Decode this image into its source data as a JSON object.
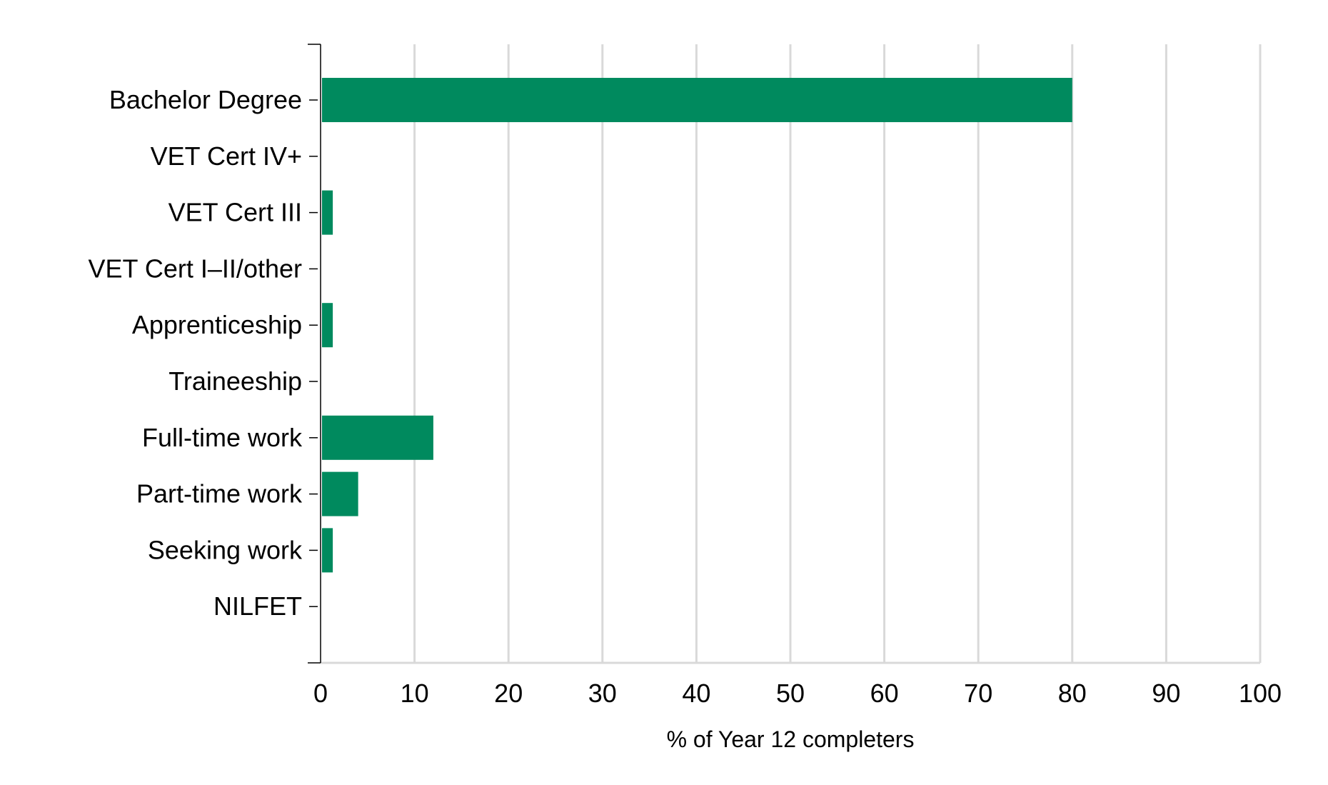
{
  "chart_data": {
    "type": "bar",
    "orientation": "horizontal",
    "categories": [
      "Bachelor Degree",
      "VET Cert IV+",
      "VET Cert III",
      "VET Cert I–II/other",
      "Apprenticeship",
      "Traineeship",
      "Full-time work",
      "Part-time work",
      "Seeking work",
      "NILFET"
    ],
    "values": [
      80,
      0,
      1.3,
      0,
      1.3,
      0,
      12,
      4,
      1.3,
      0
    ],
    "xlabel": "% of Year 12 completers",
    "ylabel": "",
    "xlim": [
      0,
      100
    ],
    "xticks": [
      "0",
      "10",
      "20",
      "30",
      "40",
      "50",
      "60",
      "70",
      "80",
      "90",
      "100"
    ],
    "grid": "vertical",
    "bar_color": "#008a5e"
  }
}
